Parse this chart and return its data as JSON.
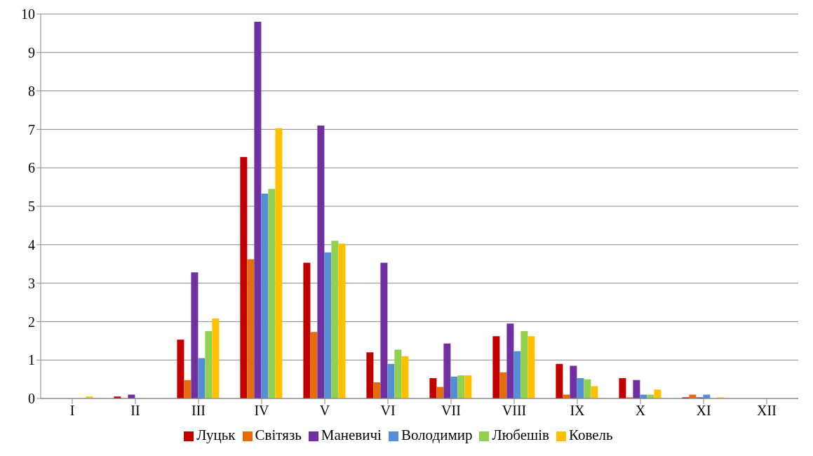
{
  "chart_data": {
    "type": "bar",
    "categories": [
      "I",
      "II",
      "III",
      "IV",
      "V",
      "VI",
      "VII",
      "VIII",
      "IX",
      "X",
      "XI",
      "XII"
    ],
    "series": [
      {
        "name": "Луцьк",
        "color": "#c00000",
        "values": [
          0,
          0.05,
          1.53,
          6.28,
          3.53,
          1.2,
          0.53,
          1.62,
          0.9,
          0.53,
          0.03,
          0
        ]
      },
      {
        "name": "Світязь",
        "color": "#e46c0a",
        "values": [
          0,
          0,
          0.48,
          3.62,
          1.73,
          0.42,
          0.3,
          0.68,
          0.1,
          0.03,
          0.1,
          0
        ]
      },
      {
        "name": "Маневичі",
        "color": "#7030a0",
        "values": [
          0,
          0.1,
          3.28,
          9.8,
          7.1,
          3.53,
          1.43,
          1.95,
          0.85,
          0.48,
          0.03,
          0
        ]
      },
      {
        "name": "Володимир",
        "color": "#558ed5",
        "values": [
          0,
          0,
          1.05,
          5.33,
          3.8,
          0.9,
          0.57,
          1.23,
          0.53,
          0.1,
          0.1,
          0
        ]
      },
      {
        "name": "Любешів",
        "color": "#92d050",
        "values": [
          0,
          0,
          1.75,
          5.45,
          4.1,
          1.27,
          0.6,
          1.75,
          0.5,
          0.1,
          0,
          0
        ]
      },
      {
        "name": "Ковель",
        "color": "#ffc000",
        "values": [
          0.05,
          0,
          2.08,
          7.03,
          4.03,
          1.1,
          0.6,
          1.62,
          0.32,
          0.23,
          0.03,
          0
        ]
      }
    ],
    "ylim": [
      0,
      10
    ],
    "yticks": [
      0,
      1,
      2,
      3,
      4,
      5,
      6,
      7,
      8,
      9,
      10
    ],
    "grid": "y",
    "legend": "bottom"
  }
}
